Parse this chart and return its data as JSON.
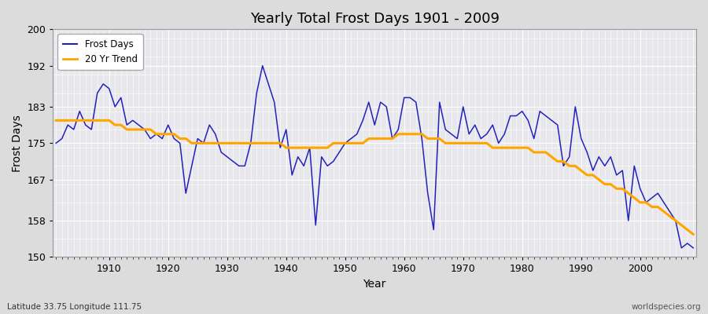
{
  "title": "Yearly Total Frost Days 1901 - 2009",
  "xlabel": "Year",
  "ylabel": "Frost Days",
  "bottom_left_label": "Latitude 33.75 Longitude 111.75",
  "bottom_right_label": "worldspecies.org",
  "ylim": [
    150,
    200
  ],
  "yticks": [
    150,
    158,
    167,
    175,
    183,
    192,
    200
  ],
  "line_color": "#2222bb",
  "trend_color": "#ffa500",
  "bg_color": "#dcdcdc",
  "plot_bg_color": "#e8e8ec",
  "legend_entries": [
    "Frost Days",
    "20 Yr Trend"
  ],
  "years": [
    1901,
    1902,
    1903,
    1904,
    1905,
    1906,
    1907,
    1908,
    1909,
    1910,
    1911,
    1912,
    1913,
    1914,
    1915,
    1916,
    1917,
    1918,
    1919,
    1920,
    1921,
    1922,
    1923,
    1924,
    1925,
    1926,
    1927,
    1928,
    1929,
    1930,
    1931,
    1932,
    1933,
    1934,
    1935,
    1936,
    1937,
    1938,
    1939,
    1940,
    1941,
    1942,
    1943,
    1944,
    1945,
    1946,
    1947,
    1948,
    1949,
    1950,
    1951,
    1952,
    1953,
    1954,
    1955,
    1956,
    1957,
    1958,
    1959,
    1960,
    1961,
    1962,
    1963,
    1964,
    1965,
    1966,
    1967,
    1968,
    1969,
    1970,
    1971,
    1972,
    1973,
    1974,
    1975,
    1976,
    1977,
    1978,
    1979,
    1980,
    1981,
    1982,
    1983,
    1984,
    1985,
    1986,
    1987,
    1988,
    1989,
    1990,
    1991,
    1992,
    1993,
    1994,
    1995,
    1996,
    1997,
    1998,
    1999,
    2000,
    2001,
    2002,
    2003,
    2004,
    2005,
    2006,
    2007,
    2008,
    2009
  ],
  "frost_days": [
    175,
    176,
    179,
    178,
    182,
    179,
    178,
    186,
    188,
    187,
    183,
    185,
    179,
    180,
    179,
    178,
    176,
    177,
    176,
    179,
    176,
    175,
    164,
    170,
    176,
    175,
    179,
    177,
    173,
    172,
    171,
    170,
    170,
    175,
    186,
    192,
    188,
    184,
    174,
    178,
    168,
    172,
    170,
    174,
    157,
    172,
    170,
    171,
    173,
    175,
    176,
    177,
    180,
    184,
    179,
    184,
    183,
    176,
    178,
    185,
    185,
    184,
    176,
    164,
    156,
    184,
    178,
    177,
    176,
    183,
    177,
    179,
    176,
    177,
    179,
    175,
    177,
    181,
    181,
    182,
    180,
    176,
    182,
    181,
    180,
    179,
    170,
    172,
    183,
    176,
    173,
    169,
    172,
    170,
    172,
    168,
    169,
    158,
    170,
    165,
    162,
    163,
    164,
    162,
    160,
    158,
    152,
    153,
    152
  ],
  "trend_values": [
    180,
    180,
    180,
    180,
    180,
    180,
    180,
    180,
    180,
    180,
    179,
    179,
    178,
    178,
    178,
    178,
    178,
    177,
    177,
    177,
    177,
    176,
    176,
    175,
    175,
    175,
    175,
    175,
    175,
    175,
    175,
    175,
    175,
    175,
    175,
    175,
    175,
    175,
    175,
    174,
    174,
    174,
    174,
    174,
    174,
    174,
    174,
    175,
    175,
    175,
    175,
    175,
    175,
    176,
    176,
    176,
    176,
    176,
    177,
    177,
    177,
    177,
    177,
    176,
    176,
    176,
    175,
    175,
    175,
    175,
    175,
    175,
    175,
    175,
    174,
    174,
    174,
    174,
    174,
    174,
    174,
    173,
    173,
    173,
    172,
    171,
    171,
    170,
    170,
    169,
    168,
    168,
    167,
    166,
    166,
    165,
    165,
    164,
    163,
    162,
    162,
    161,
    161,
    160,
    159,
    158,
    157,
    156,
    155
  ]
}
